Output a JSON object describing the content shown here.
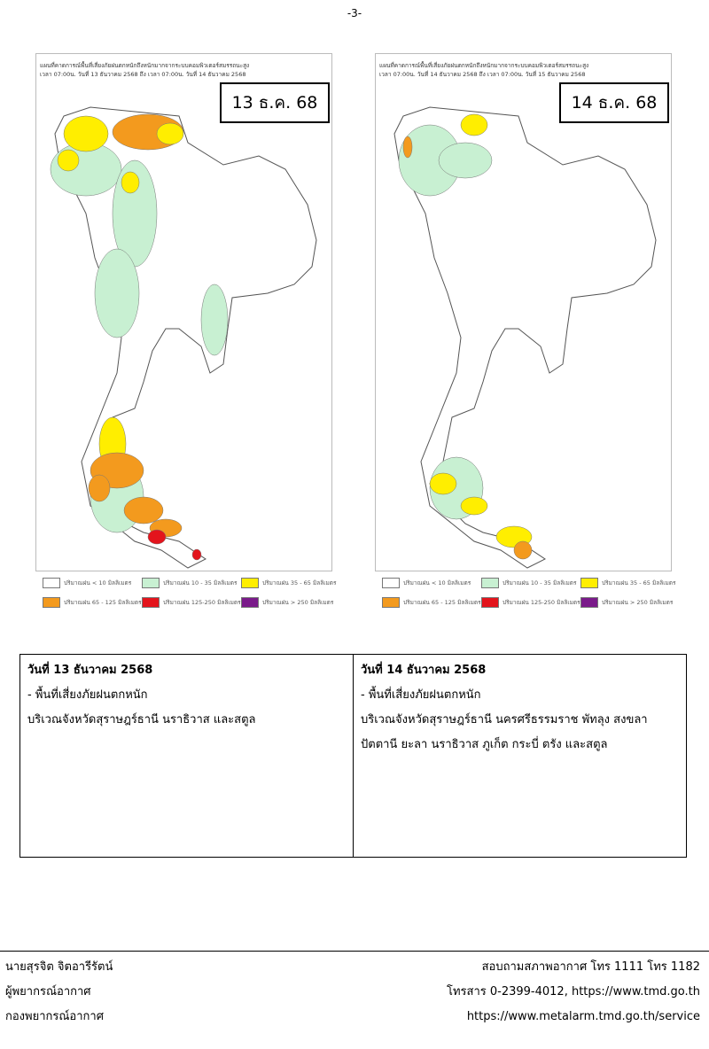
{
  "page_number": "-3-",
  "maps": [
    {
      "title_line1": "แผนที่คาดการณ์พื้นที่เสี่ยงภัยฝนตกหนักถึงหนักมากจากระบบคอมพิวเตอร์สมรรถนะสูง",
      "title_line2": "เวลา 07:00น. วันที่ 13 ธันวาคม 2568 ถึง เวลา 07:00น. วันที่ 14 ธันวาคม 2568",
      "date_label": "13 ธ.ค. 68"
    },
    {
      "title_line1": "แผนที่คาดการณ์พื้นที่เสี่ยงภัยฝนตกหนักถึงหนักมากจากระบบคอมพิวเตอร์สมรรถนะสูง",
      "title_line2": "เวลา 07:00น. วันที่ 14 ธันวาคม 2568 ถึง เวลา 07:00น. วันที่ 15 ธันวาคม 2568",
      "date_label": "14 ธ.ค. 68"
    }
  ],
  "legend": [
    {
      "label": "ปริมาณฝน < 10 มิลลิเมตร",
      "color": "#ffffff"
    },
    {
      "label": "ปริมาณฝน 10 - 35 มิลลิเมตร",
      "color": "#c8f0d2"
    },
    {
      "label": "ปริมาณฝน 35 - 65 มิลลิเมตร",
      "color": "#ffee00"
    },
    {
      "label": "ปริมาณฝน 65 - 125 มิลลิเมตร",
      "color": "#f39a1e"
    },
    {
      "label": "ปริมาณฝน 125-250 มิลลิเมตร",
      "color": "#e3141c"
    },
    {
      "label": "ปริมาณฝน > 250 มิลลิเมตร",
      "color": "#7a1a8a"
    }
  ],
  "table": [
    {
      "heading": "วันที่ 13 ธันวาคม 2568",
      "lines": [
        "- พื้นที่เสี่ยงภัยฝนตกหนัก",
        "บริเวณจังหวัดสุราษฎร์ธานี นราธิวาส และสตูล"
      ]
    },
    {
      "heading": "วันที่ 14 ธันวาคม 2568",
      "lines": [
        "- พื้นที่เสี่ยงภัยฝนตกหนัก",
        "บริเวณจังหวัดสุราษฎร์ธานี นครศรีธรรมราช พัทลุง สงขลา",
        "ปัตตานี ยะลา นราธิวาส ภูเก็ต กระบี่ ตรัง และสตูล"
      ]
    }
  ],
  "footer": {
    "left": [
      "นายสุรจิต จิตอารีรัตน์",
      "ผู้พยากรณ์อากาศ",
      "กองพยากรณ์อากาศ"
    ],
    "right": [
      "สอบถามสภาพอากาศ โทร 1111 โทร 1182",
      "โทรสาร 0-2399-4012, https://www.tmd.go.th",
      "https://www.metalarm.tmd.go.th/service"
    ]
  }
}
